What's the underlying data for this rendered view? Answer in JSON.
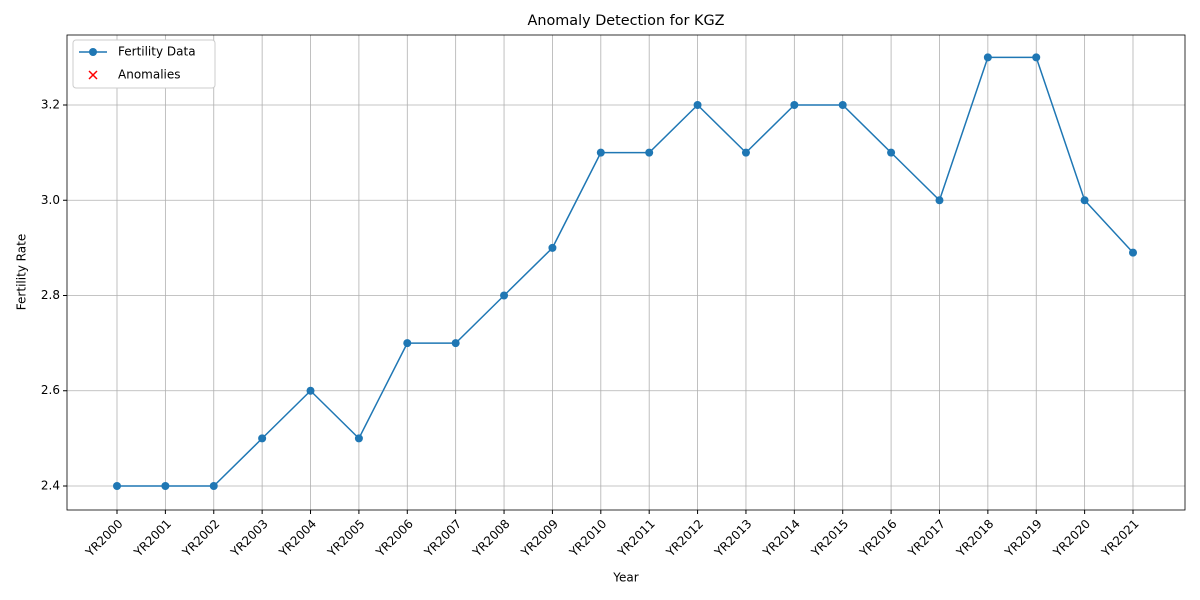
{
  "chart_data": {
    "type": "line",
    "title": "Anomaly Detection for KGZ",
    "xlabel": "Year",
    "ylabel": "Fertility Rate",
    "categories": [
      "YR2000",
      "YR2001",
      "YR2002",
      "YR2003",
      "YR2004",
      "YR2005",
      "YR2006",
      "YR2007",
      "YR2008",
      "YR2009",
      "YR2010",
      "YR2011",
      "YR2012",
      "YR2013",
      "YR2014",
      "YR2015",
      "YR2016",
      "YR2017",
      "YR2018",
      "YR2019",
      "YR2020",
      "YR2021"
    ],
    "series": [
      {
        "name": "Fertility Data",
        "color": "#1f77b4",
        "marker": "o",
        "values": [
          2.4,
          2.4,
          2.4,
          2.5,
          2.6,
          2.5,
          2.7,
          2.7,
          2.8,
          2.9,
          3.1,
          3.1,
          3.2,
          3.1,
          3.2,
          3.2,
          3.1,
          3.0,
          3.3,
          3.3,
          3.0,
          2.89
        ]
      },
      {
        "name": "Anomalies",
        "color": "#ff0000",
        "marker": "x",
        "values": [
          null,
          null,
          null,
          null,
          null,
          null,
          null,
          null,
          null,
          null,
          null,
          null,
          null,
          null,
          null,
          null,
          null,
          null,
          null,
          null,
          null,
          null
        ]
      }
    ],
    "ylim": [
      2.3496,
      3.347
    ],
    "yticks": [
      2.4,
      2.6,
      2.8,
      {
        "value": 3,
        "label": "3.0"
      },
      3.2
    ],
    "grid": true,
    "legend": "upper left"
  }
}
